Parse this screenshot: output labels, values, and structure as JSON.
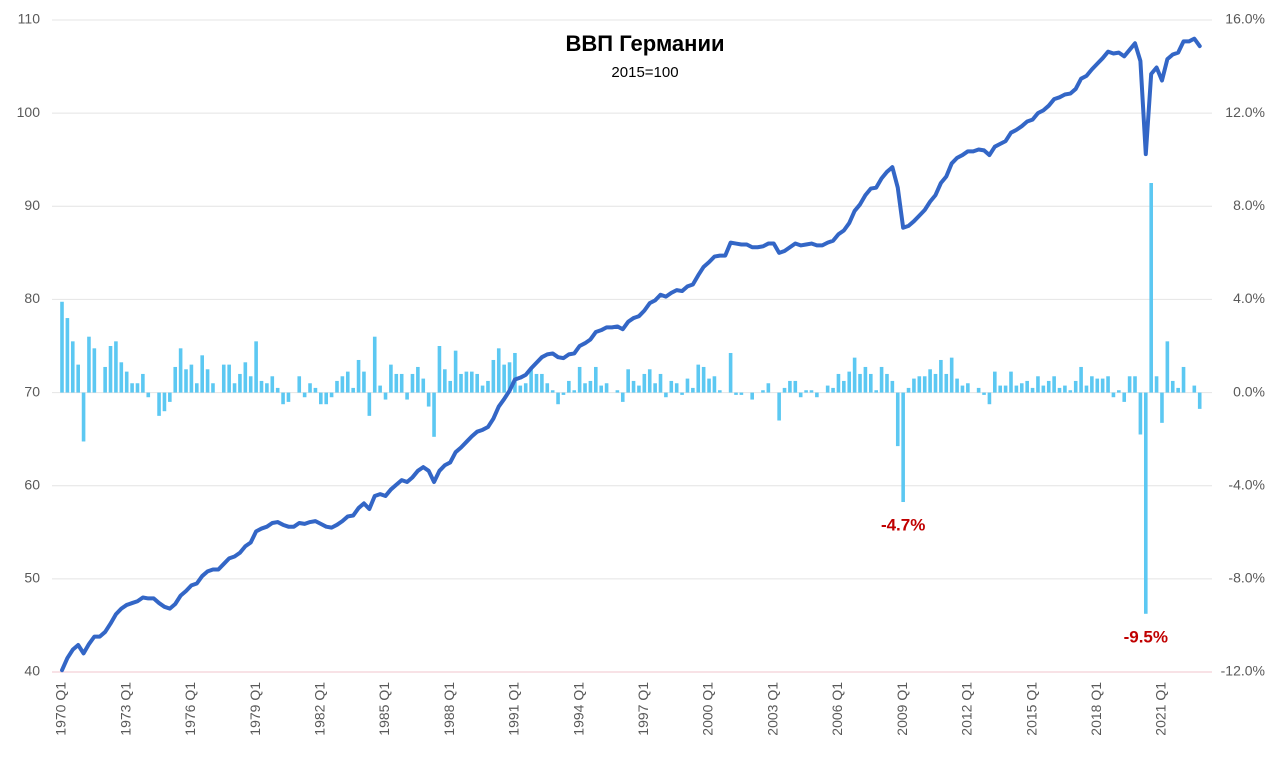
{
  "chart_data": {
    "type": "bar-line",
    "title": "ВВП Германии",
    "subtitle": "2015=100",
    "categories": [
      "1970 Q1",
      null,
      null,
      null,
      null,
      null,
      null,
      null,
      null,
      null,
      null,
      null,
      "1973 Q1",
      null,
      null,
      null,
      null,
      null,
      null,
      null,
      null,
      null,
      null,
      null,
      "1976 Q1",
      null,
      null,
      null,
      null,
      null,
      null,
      null,
      null,
      null,
      null,
      null,
      "1979 Q1",
      null,
      null,
      null,
      null,
      null,
      null,
      null,
      null,
      null,
      null,
      null,
      "1982 Q1",
      null,
      null,
      null,
      null,
      null,
      null,
      null,
      null,
      null,
      null,
      null,
      "1985 Q1",
      null,
      null,
      null,
      null,
      null,
      null,
      null,
      null,
      null,
      null,
      null,
      "1988 Q1",
      null,
      null,
      null,
      null,
      null,
      null,
      null,
      null,
      null,
      null,
      null,
      "1991 Q1",
      null,
      null,
      null,
      null,
      null,
      null,
      null,
      null,
      null,
      null,
      null,
      "1994 Q1",
      null,
      null,
      null,
      null,
      null,
      null,
      null,
      null,
      null,
      null,
      null,
      "1997 Q1",
      null,
      null,
      null,
      null,
      null,
      null,
      null,
      null,
      null,
      null,
      null,
      "2000 Q1",
      null,
      null,
      null,
      null,
      null,
      null,
      null,
      null,
      null,
      null,
      null,
      "2003 Q1",
      null,
      null,
      null,
      null,
      null,
      null,
      null,
      null,
      null,
      null,
      null,
      "2006 Q1",
      null,
      null,
      null,
      null,
      null,
      null,
      null,
      null,
      null,
      null,
      null,
      "2009 Q1",
      null,
      null,
      null,
      null,
      null,
      null,
      null,
      null,
      null,
      null,
      null,
      "2012 Q1",
      null,
      null,
      null,
      null,
      null,
      null,
      null,
      null,
      null,
      null,
      null,
      "2015 Q1",
      null,
      null,
      null,
      null,
      null,
      null,
      null,
      null,
      null,
      null,
      null,
      "2018 Q1",
      null,
      null,
      null,
      null,
      null,
      null,
      null,
      null,
      null,
      null,
      null,
      "2021 Q1",
      null,
      null,
      null,
      null,
      null,
      null,
      null
    ],
    "series": [
      {
        "type": "bar",
        "axis": "y2",
        "color": "#5cc8f2",
        "values": [
          3.9,
          3.2,
          2.2,
          1.2,
          -2.1,
          2.4,
          1.9,
          0.0,
          1.1,
          2.0,
          2.2,
          1.3,
          0.9,
          0.4,
          0.4,
          0.8,
          -0.2,
          0.0,
          -1.0,
          -0.8,
          -0.4,
          1.1,
          1.9,
          1.0,
          1.2,
          0.4,
          1.6,
          1.0,
          0.4,
          0.0,
          1.2,
          1.2,
          0.4,
          0.8,
          1.3,
          0.7,
          2.2,
          0.5,
          0.4,
          0.7,
          0.2,
          -0.5,
          -0.4,
          0.0,
          0.7,
          -0.2,
          0.4,
          0.2,
          -0.5,
          -0.5,
          -0.2,
          0.5,
          0.7,
          0.9,
          0.2,
          1.4,
          0.9,
          -1.0,
          2.4,
          0.3,
          -0.3,
          1.2,
          0.8,
          0.8,
          -0.3,
          0.8,
          1.1,
          0.6,
          -0.6,
          -1.9,
          2.0,
          1.0,
          0.5,
          1.8,
          0.8,
          0.9,
          0.9,
          0.8,
          0.3,
          0.5,
          1.4,
          1.9,
          1.2,
          1.3,
          1.7,
          0.3,
          0.4,
          1.0,
          0.8,
          0.8,
          0.4,
          0.1,
          -0.5,
          -0.1,
          0.5,
          0.1,
          1.1,
          0.4,
          0.5,
          1.1,
          0.3,
          0.4,
          0.0,
          0.1,
          -0.4,
          1.0,
          0.5,
          0.3,
          0.8,
          1.0,
          0.4,
          0.8,
          -0.2,
          0.5,
          0.4,
          -0.1,
          0.6,
          0.2,
          1.2,
          1.1,
          0.6,
          0.7,
          0.1,
          0.0,
          1.7,
          -0.1,
          -0.1,
          0.0,
          -0.3,
          0.0,
          0.1,
          0.4,
          0.0,
          -1.2,
          0.2,
          0.5,
          0.5,
          -0.2,
          0.1,
          0.1,
          -0.2,
          0.0,
          0.3,
          0.2,
          0.8,
          0.5,
          0.9,
          1.5,
          0.8,
          1.1,
          0.8,
          0.1,
          1.1,
          0.8,
          0.5,
          -2.3,
          -4.7,
          0.2,
          0.6,
          0.7,
          0.7,
          1.0,
          0.8,
          1.4,
          0.8,
          1.5,
          0.6,
          0.3,
          0.4,
          0.0,
          0.2,
          -0.1,
          -0.5,
          0.9,
          0.3,
          0.3,
          0.9,
          0.3,
          0.4,
          0.5,
          0.2,
          0.7,
          0.3,
          0.5,
          0.7,
          0.2,
          0.3,
          0.1,
          0.5,
          1.1,
          0.3,
          0.7,
          0.6,
          0.6,
          0.7,
          -0.2,
          0.1,
          -0.4,
          0.7,
          0.7,
          -1.8,
          -9.5,
          9.0,
          0.7,
          -1.3,
          2.2,
          0.5,
          0.2,
          1.1,
          0.0,
          0.3,
          -0.7
        ],
        "value_labels": [
          null,
          null,
          null,
          null,
          null,
          null,
          null,
          null,
          null,
          null,
          null,
          null,
          null,
          null,
          null,
          null,
          null,
          null,
          null,
          null,
          null,
          null,
          null,
          null,
          null,
          null,
          null,
          null,
          null,
          null,
          null,
          null,
          null,
          null,
          null,
          null,
          null,
          null,
          null,
          null,
          null,
          null,
          null,
          null,
          null,
          null,
          null,
          null,
          null,
          null,
          null,
          null,
          null,
          null,
          null,
          null,
          null,
          null,
          null,
          null,
          null,
          null,
          null,
          null,
          null,
          null,
          null,
          null,
          null,
          null,
          null,
          null,
          null,
          null,
          null,
          null,
          null,
          null,
          null,
          null,
          null,
          null,
          null,
          null,
          null,
          null,
          null,
          null,
          null,
          null,
          null,
          null,
          null,
          null,
          null,
          null,
          null,
          null,
          null,
          null,
          null,
          null,
          null,
          null,
          null,
          null,
          null,
          null,
          null,
          null,
          null,
          null,
          null,
          null,
          null,
          null,
          null,
          null,
          null,
          null,
          null,
          null,
          null,
          null,
          null,
          null,
          null,
          null,
          null,
          null,
          null,
          null,
          null,
          null,
          null,
          null,
          null,
          null,
          null,
          null,
          null,
          null,
          null,
          null,
          null,
          null,
          null,
          null,
          null,
          null,
          null,
          null,
          null,
          null,
          null,
          null,
          "-4.7%",
          null,
          null,
          null,
          null,
          null,
          null,
          null,
          null,
          null,
          null,
          null,
          null,
          null,
          null,
          null,
          null,
          null,
          null,
          null,
          null,
          null,
          null,
          null,
          null,
          null,
          null,
          null,
          null,
          null,
          null,
          null,
          null,
          null,
          null,
          null,
          null,
          null,
          null,
          null,
          null,
          null,
          null,
          null,
          null,
          "-9.5%",
          null,
          null,
          null,
          null,
          null,
          null,
          null,
          null,
          null,
          null
        ],
        "label_color": "#c00000"
      },
      {
        "type": "line",
        "axis": "y",
        "color": "#3366c6",
        "values": [
          40.2,
          41.5,
          42.4,
          42.9,
          42.0,
          43.0,
          43.8,
          43.8,
          44.3,
          45.2,
          46.2,
          46.8,
          47.2,
          47.4,
          47.6,
          48.0,
          47.9,
          47.9,
          47.4,
          47.0,
          46.8,
          47.3,
          48.2,
          48.7,
          49.3,
          49.5,
          50.3,
          50.8,
          51.0,
          51.0,
          51.6,
          52.2,
          52.4,
          52.8,
          53.5,
          53.9,
          55.1,
          55.4,
          55.6,
          56.0,
          56.1,
          55.8,
          55.6,
          55.6,
          56.0,
          55.9,
          56.1,
          56.2,
          55.9,
          55.6,
          55.5,
          55.8,
          56.2,
          56.7,
          56.8,
          57.6,
          58.1,
          57.5,
          58.9,
          59.1,
          58.9,
          59.6,
          60.1,
          60.6,
          60.4,
          60.9,
          61.6,
          62.0,
          61.6,
          60.4,
          61.6,
          62.2,
          62.5,
          63.6,
          64.1,
          64.7,
          65.3,
          65.8,
          66.0,
          66.3,
          67.2,
          68.5,
          69.3,
          70.2,
          71.4,
          71.6,
          71.9,
          72.6,
          73.2,
          73.8,
          74.1,
          74.2,
          73.8,
          73.7,
          74.1,
          74.2,
          75.0,
          75.3,
          75.7,
          76.5,
          76.7,
          77.0,
          77.0,
          77.1,
          76.8,
          77.6,
          78.0,
          78.2,
          78.8,
          79.6,
          79.9,
          80.5,
          80.3,
          80.7,
          81.0,
          80.9,
          81.4,
          81.6,
          82.6,
          83.5,
          84.0,
          84.6,
          84.7,
          84.7,
          86.1,
          86.0,
          85.9,
          85.9,
          85.6,
          85.6,
          85.7,
          86.0,
          86.0,
          85.0,
          85.2,
          85.6,
          86.0,
          85.8,
          85.9,
          86.0,
          85.8,
          85.8,
          86.1,
          86.3,
          87.0,
          87.4,
          88.2,
          89.5,
          90.2,
          91.2,
          91.9,
          92.0,
          93.0,
          93.7,
          94.2,
          92.0,
          87.7,
          87.9,
          88.4,
          89.0,
          89.6,
          90.5,
          91.2,
          92.5,
          93.2,
          94.6,
          95.2,
          95.5,
          95.9,
          95.9,
          96.1,
          96.0,
          95.5,
          96.4,
          96.7,
          97.0,
          97.9,
          98.2,
          98.6,
          99.1,
          99.3,
          100.0,
          100.3,
          100.8,
          101.5,
          101.7,
          102.0,
          102.1,
          102.6,
          103.7,
          104.0,
          104.7,
          105.3,
          105.9,
          106.6,
          106.4,
          106.5,
          106.1,
          106.8,
          107.5,
          105.6,
          95.6,
          104.2,
          104.9,
          103.5,
          105.8,
          106.3,
          106.5,
          107.7,
          107.7,
          108.0,
          107.2
        ]
      }
    ],
    "ylim": [
      40,
      110
    ],
    "yticks": [
      40,
      50,
      60,
      70,
      80,
      90,
      100,
      110
    ],
    "y2lim": [
      -12,
      16
    ],
    "y2ticks": [
      {
        "value": -12,
        "label": "-12.0%"
      },
      {
        "value": -8,
        "label": "-8.0%"
      },
      {
        "value": -4,
        "label": "-4.0%"
      },
      {
        "value": 0,
        "label": "0.0%"
      },
      {
        "value": 4,
        "label": "4.0%"
      },
      {
        "value": 8,
        "label": "8.0%"
      },
      {
        "value": 12,
        "label": "12.0%"
      },
      {
        "value": 16,
        "label": "16.0%"
      }
    ],
    "grid": true
  }
}
